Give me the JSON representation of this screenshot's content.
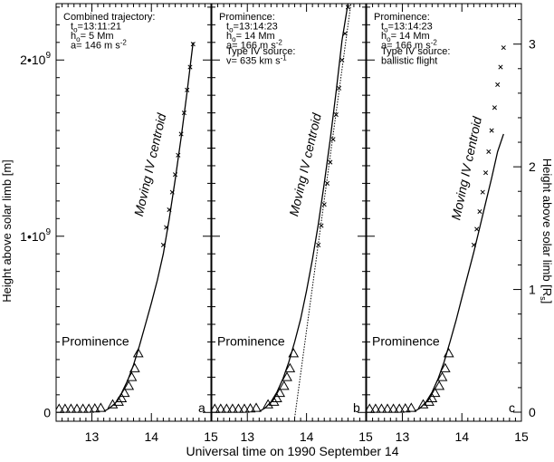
{
  "figure": {
    "xlabel": "Universal time on 1990 September 14",
    "ylabel_left": "Height above solar limb [m]",
    "ylabel_right": "Height above solar limb [R",
    "ylabel_right_sub": "s",
    "ylabel_right_close": "]",
    "left_ticks": [
      {
        "value": 0,
        "label": "0",
        "base": "0",
        "exp": ""
      },
      {
        "value": 1000000000,
        "label": "1•10^9",
        "base": "1•10",
        "exp": "9"
      },
      {
        "value": 2000000000,
        "label": "2•10^9",
        "base": "2•10",
        "exp": "9"
      }
    ],
    "right_ticks": [
      {
        "value": 0,
        "label": "0"
      },
      {
        "value": 1,
        "label": "1"
      },
      {
        "value": 2,
        "label": "2"
      },
      {
        "value": 3,
        "label": "3"
      }
    ],
    "x_ticks": [
      13,
      14,
      15
    ]
  },
  "chart_data": [
    {
      "type": "scatter",
      "panel_label": "a",
      "x_range": [
        12.4,
        15.0
      ],
      "y_range_m": [
        -50000000,
        2320000000
      ],
      "y_range_rs": [
        0,
        3.33
      ],
      "annotation_lines": [
        {
          "parts": [
            {
              "t": "Combined trajectory:"
            }
          ]
        },
        {
          "parts": [
            {
              "t": "t"
            },
            {
              "t": "o",
              "sub": true
            },
            {
              "t": "=13:11:21"
            }
          ]
        },
        {
          "parts": [
            {
              "t": "h"
            },
            {
              "t": "o",
              "sub": true
            },
            {
              "t": "= 5 Mm"
            }
          ]
        },
        {
          "parts": [
            {
              "t": "a= 146 m s"
            },
            {
              "t": "-2",
              "sup": true
            }
          ]
        }
      ],
      "prominence_label": "Prominence",
      "centroid_label": "Moving IV centroid",
      "prominence_points": [
        {
          "x": 12.45,
          "y": 20000000
        },
        {
          "x": 12.55,
          "y": 20000000
        },
        {
          "x": 12.65,
          "y": 20000000
        },
        {
          "x": 12.75,
          "y": 20000000
        },
        {
          "x": 12.85,
          "y": 20000000
        },
        {
          "x": 12.95,
          "y": 20000000
        },
        {
          "x": 13.05,
          "y": 22000000
        },
        {
          "x": 13.15,
          "y": 25000000
        },
        {
          "x": 13.35,
          "y": 45000000
        },
        {
          "x": 13.45,
          "y": 60000000
        },
        {
          "x": 13.5,
          "y": 80000000
        },
        {
          "x": 13.55,
          "y": 110000000
        },
        {
          "x": 13.62,
          "y": 150000000
        },
        {
          "x": 13.67,
          "y": 200000000
        },
        {
          "x": 13.72,
          "y": 250000000
        },
        {
          "x": 13.78,
          "y": 335000000
        }
      ],
      "centroid_points": [
        {
          "x": 14.2,
          "y": 950000000
        },
        {
          "x": 14.25,
          "y": 1050000000
        },
        {
          "x": 14.3,
          "y": 1150000000
        },
        {
          "x": 14.35,
          "y": 1250000000
        },
        {
          "x": 14.4,
          "y": 1350000000
        },
        {
          "x": 14.45,
          "y": 1460000000
        },
        {
          "x": 14.5,
          "y": 1580000000
        },
        {
          "x": 14.55,
          "y": 1700000000
        },
        {
          "x": 14.6,
          "y": 1830000000
        },
        {
          "x": 14.65,
          "y": 1960000000
        },
        {
          "x": 14.7,
          "y": 2090000000
        }
      ],
      "solid_curve": [
        {
          "x": 13.2,
          "y": 5000000
        },
        {
          "x": 13.3,
          "y": 25000000
        },
        {
          "x": 13.4,
          "y": 55000000
        },
        {
          "x": 13.5,
          "y": 110000000
        },
        {
          "x": 13.6,
          "y": 180000000
        },
        {
          "x": 13.7,
          "y": 270000000
        },
        {
          "x": 13.8,
          "y": 380000000
        },
        {
          "x": 13.9,
          "y": 500000000
        },
        {
          "x": 14.0,
          "y": 620000000
        },
        {
          "x": 14.1,
          "y": 750000000
        },
        {
          "x": 14.2,
          "y": 900000000
        },
        {
          "x": 14.3,
          "y": 1100000000
        },
        {
          "x": 14.4,
          "y": 1320000000
        },
        {
          "x": 14.5,
          "y": 1560000000
        },
        {
          "x": 14.6,
          "y": 1820000000
        },
        {
          "x": 14.7,
          "y": 2100000000
        }
      ],
      "dotted_line": []
    },
    {
      "type": "scatter",
      "panel_label": "b",
      "x_range": [
        12.4,
        15.0
      ],
      "y_range_m": [
        -50000000,
        2320000000
      ],
      "y_range_rs": [
        0,
        3.33
      ],
      "annotation_lines": [
        {
          "parts": [
            {
              "t": "Prominence:"
            }
          ]
        },
        {
          "parts": [
            {
              "t": "t"
            },
            {
              "t": "o",
              "sub": true
            },
            {
              "t": "=13:14:23"
            }
          ]
        },
        {
          "parts": [
            {
              "t": "h"
            },
            {
              "t": "o",
              "sub": true
            },
            {
              "t": "= 14 Mm"
            }
          ]
        },
        {
          "parts": [
            {
              "t": "a= 166 m s"
            },
            {
              "t": "-2",
              "sup": true
            }
          ]
        },
        {
          "parts": [
            {
              "t": "Type IV source:"
            }
          ]
        },
        {
          "parts": [
            {
              "t": "v= 635 km s"
            },
            {
              "t": "-1",
              "sup": true
            }
          ]
        }
      ],
      "prominence_label": "Prominence",
      "centroid_label": "Moving IV centroid",
      "prominence_points": [
        {
          "x": 12.45,
          "y": 20000000
        },
        {
          "x": 12.55,
          "y": 20000000
        },
        {
          "x": 12.65,
          "y": 20000000
        },
        {
          "x": 12.75,
          "y": 20000000
        },
        {
          "x": 12.85,
          "y": 20000000
        },
        {
          "x": 12.95,
          "y": 20000000
        },
        {
          "x": 13.05,
          "y": 22000000
        },
        {
          "x": 13.15,
          "y": 25000000
        },
        {
          "x": 13.35,
          "y": 45000000
        },
        {
          "x": 13.45,
          "y": 60000000
        },
        {
          "x": 13.5,
          "y": 80000000
        },
        {
          "x": 13.55,
          "y": 110000000
        },
        {
          "x": 13.62,
          "y": 150000000
        },
        {
          "x": 13.67,
          "y": 200000000
        },
        {
          "x": 13.72,
          "y": 250000000
        },
        {
          "x": 13.78,
          "y": 335000000
        }
      ],
      "centroid_points": [
        {
          "x": 14.2,
          "y": 950000000
        },
        {
          "x": 14.25,
          "y": 1060000000
        },
        {
          "x": 14.3,
          "y": 1180000000
        },
        {
          "x": 14.35,
          "y": 1300000000
        },
        {
          "x": 14.4,
          "y": 1420000000
        },
        {
          "x": 14.45,
          "y": 1550000000
        },
        {
          "x": 14.5,
          "y": 1690000000
        },
        {
          "x": 14.55,
          "y": 1840000000
        },
        {
          "x": 14.6,
          "y": 2000000000
        },
        {
          "x": 14.65,
          "y": 2150000000
        },
        {
          "x": 14.7,
          "y": 2300000000
        }
      ],
      "solid_curve": [
        {
          "x": 13.2,
          "y": 5000000
        },
        {
          "x": 13.3,
          "y": 25000000
        },
        {
          "x": 13.4,
          "y": 60000000
        },
        {
          "x": 13.5,
          "y": 115000000
        },
        {
          "x": 13.6,
          "y": 190000000
        },
        {
          "x": 13.7,
          "y": 285000000
        },
        {
          "x": 13.8,
          "y": 400000000
        },
        {
          "x": 13.9,
          "y": 530000000
        },
        {
          "x": 14.0,
          "y": 690000000
        },
        {
          "x": 14.1,
          "y": 870000000
        },
        {
          "x": 14.2,
          "y": 1070000000
        },
        {
          "x": 14.3,
          "y": 1300000000
        },
        {
          "x": 14.4,
          "y": 1550000000
        },
        {
          "x": 14.5,
          "y": 1820000000
        },
        {
          "x": 14.6,
          "y": 2110000000
        },
        {
          "x": 14.7,
          "y": 2320000000
        }
      ],
      "dotted_line": [
        {
          "x": 13.8,
          "y": -30000000
        },
        {
          "x": 14.75,
          "y": 2320000000
        }
      ]
    },
    {
      "type": "scatter",
      "panel_label": "c",
      "x_range": [
        12.4,
        15.0
      ],
      "y_range_m": [
        -50000000,
        2320000000
      ],
      "y_range_rs": [
        0,
        3.33
      ],
      "annotation_lines": [
        {
          "parts": [
            {
              "t": "Prominence:"
            }
          ]
        },
        {
          "parts": [
            {
              "t": "t"
            },
            {
              "t": "o",
              "sub": true
            },
            {
              "t": "=13:14:23"
            }
          ]
        },
        {
          "parts": [
            {
              "t": "h"
            },
            {
              "t": "o",
              "sub": true
            },
            {
              "t": "= 14 Mm"
            }
          ]
        },
        {
          "parts": [
            {
              "t": "a= 166 m s"
            },
            {
              "t": "-2",
              "sup": true
            }
          ]
        },
        {
          "parts": [
            {
              "t": "Type IV source:"
            }
          ]
        },
        {
          "parts": [
            {
              "t": "ballistic flight"
            }
          ]
        }
      ],
      "prominence_label": "Prominence",
      "centroid_label": "Moving IV centroid",
      "prominence_points": [
        {
          "x": 12.45,
          "y": 20000000
        },
        {
          "x": 12.55,
          "y": 20000000
        },
        {
          "x": 12.65,
          "y": 20000000
        },
        {
          "x": 12.75,
          "y": 20000000
        },
        {
          "x": 12.85,
          "y": 20000000
        },
        {
          "x": 12.95,
          "y": 20000000
        },
        {
          "x": 13.05,
          "y": 22000000
        },
        {
          "x": 13.15,
          "y": 25000000
        },
        {
          "x": 13.35,
          "y": 45000000
        },
        {
          "x": 13.45,
          "y": 60000000
        },
        {
          "x": 13.5,
          "y": 80000000
        },
        {
          "x": 13.55,
          "y": 110000000
        },
        {
          "x": 13.62,
          "y": 150000000
        },
        {
          "x": 13.67,
          "y": 200000000
        },
        {
          "x": 13.72,
          "y": 250000000
        },
        {
          "x": 13.78,
          "y": 335000000
        }
      ],
      "centroid_points": [
        {
          "x": 14.2,
          "y": 950000000
        },
        {
          "x": 14.25,
          "y": 1040000000
        },
        {
          "x": 14.3,
          "y": 1140000000
        },
        {
          "x": 14.35,
          "y": 1250000000
        },
        {
          "x": 14.4,
          "y": 1360000000
        },
        {
          "x": 14.45,
          "y": 1480000000
        },
        {
          "x": 14.5,
          "y": 1600000000
        },
        {
          "x": 14.55,
          "y": 1730000000
        },
        {
          "x": 14.6,
          "y": 1860000000
        },
        {
          "x": 14.65,
          "y": 1960000000
        },
        {
          "x": 14.7,
          "y": 2070000000
        }
      ],
      "solid_curve": [
        {
          "x": 13.2,
          "y": 5000000
        },
        {
          "x": 13.3,
          "y": 25000000
        },
        {
          "x": 13.4,
          "y": 60000000
        },
        {
          "x": 13.5,
          "y": 115000000
        },
        {
          "x": 13.6,
          "y": 190000000
        },
        {
          "x": 13.7,
          "y": 285000000
        },
        {
          "x": 13.8,
          "y": 400000000
        },
        {
          "x": 13.9,
          "y": 520000000
        },
        {
          "x": 14.0,
          "y": 650000000
        },
        {
          "x": 14.1,
          "y": 780000000
        },
        {
          "x": 14.2,
          "y": 910000000
        },
        {
          "x": 14.3,
          "y": 1050000000
        },
        {
          "x": 14.4,
          "y": 1190000000
        },
        {
          "x": 14.5,
          "y": 1330000000
        },
        {
          "x": 14.6,
          "y": 1480000000
        },
        {
          "x": 14.7,
          "y": 1580000000
        }
      ],
      "dotted_line": []
    }
  ]
}
